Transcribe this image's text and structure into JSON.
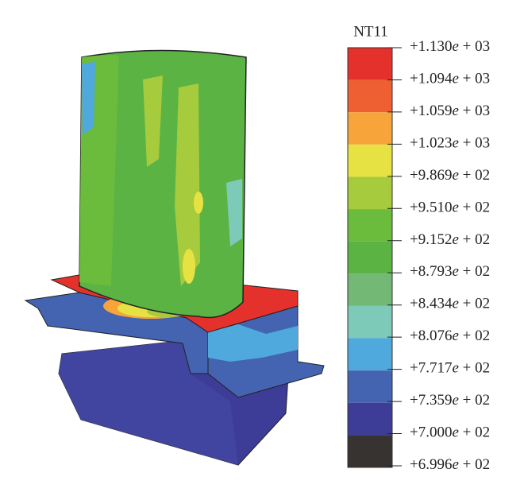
{
  "legend": {
    "title": "NT11",
    "labels": [
      "+1.130e + 03",
      "+1.094e + 03",
      "+1.059e + 03",
      "+1.023e + 03",
      "+9.869e + 02",
      "+9.510e + 02",
      "+9.152e + 02",
      "+8.793e + 02",
      "+8.434e + 02",
      "+8.076e + 02",
      "+7.717e + 02",
      "+7.359e + 02",
      "+7.000e + 02",
      "+6.996e + 02"
    ],
    "colors": [
      "#e5312b",
      "#ee5f31",
      "#f7a53a",
      "#e6e244",
      "#a6cb3d",
      "#6bbb3d",
      "#5ab343",
      "#74b876",
      "#7ecab9",
      "#4fa9dc",
      "#4463b1",
      "#3d3c97",
      "#373331"
    ]
  }
}
